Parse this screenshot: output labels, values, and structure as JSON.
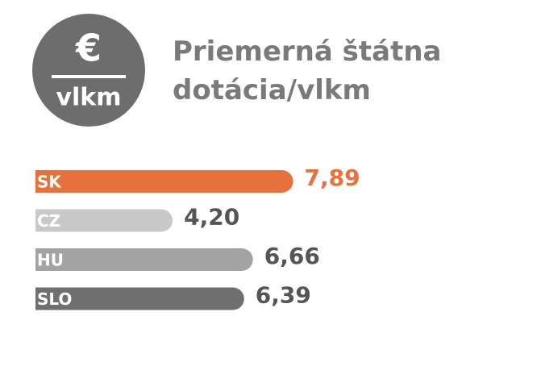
{
  "header": {
    "icon_symbol": "€",
    "icon_label": "vlkm"
  },
  "chart_data": {
    "type": "bar",
    "orientation": "horizontal",
    "title": "Priemerná štátna dotácia/vlkm",
    "categories": [
      "SK",
      "CZ",
      "HU",
      "SLO"
    ],
    "values": [
      7.89,
      4.2,
      6.66,
      6.39
    ],
    "value_labels": [
      "7,89",
      "4,20",
      "6,66",
      "6,39"
    ],
    "colors": [
      "#e8703a",
      "#c8c8c8",
      "#a3a3a3",
      "#6f6f6f"
    ],
    "label_colors": [
      "#e8703a",
      "#555555",
      "#555555",
      "#555555"
    ],
    "xlim": [
      0,
      10
    ]
  }
}
